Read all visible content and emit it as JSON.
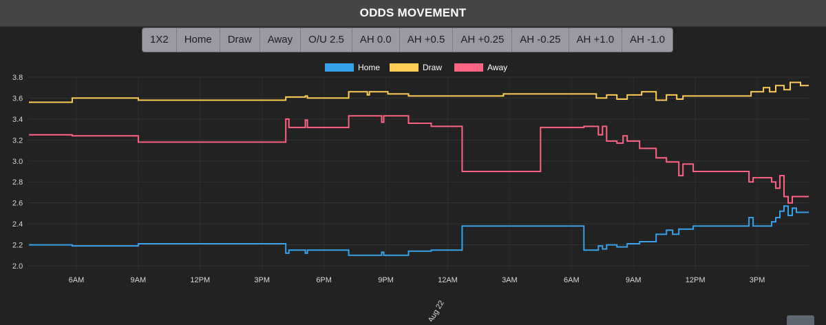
{
  "header": {
    "title": "ODDS MOVEMENT"
  },
  "tabs": [
    "1X2",
    "Home",
    "Draw",
    "Away",
    "O/U 2.5",
    "AH 0.0",
    "AH +0.5",
    "AH +0.25",
    "AH -0.25",
    "AH +1.0",
    "AH -1.0"
  ],
  "chart_data": {
    "type": "line",
    "title": "",
    "xlabel": "",
    "ylabel": "",
    "ylim": [
      2.0,
      3.8
    ],
    "yticks": [
      "2.0",
      "2.2",
      "2.4",
      "2.6",
      "2.8",
      "3.0",
      "3.2",
      "3.4",
      "3.6",
      "3.8"
    ],
    "grid": true,
    "legend_position": "top-center",
    "x_unit": "hours since the 6AM tick, Aug 21",
    "xticks": [
      {
        "x": 0,
        "label": "6AM"
      },
      {
        "x": 3,
        "label": "9AM"
      },
      {
        "x": 6,
        "label": "12PM"
      },
      {
        "x": 9,
        "label": "3PM"
      },
      {
        "x": 12,
        "label": "6PM"
      },
      {
        "x": 15,
        "label": "9PM"
      },
      {
        "x": 18,
        "label": "12AM"
      },
      {
        "x": 21,
        "label": "3AM"
      },
      {
        "x": 24,
        "label": "6AM"
      },
      {
        "x": 27,
        "label": "9AM"
      },
      {
        "x": 30,
        "label": "12PM"
      },
      {
        "x": 33,
        "label": "3PM"
      }
    ],
    "date_label": "Aug 22",
    "xlim": [
      -2.3,
      35.5
    ],
    "series": [
      {
        "name": "Home",
        "color": "#36a2eb",
        "points": [
          [
            -2.3,
            2.2
          ],
          [
            -0.2,
            2.2
          ],
          [
            -0.2,
            2.19
          ],
          [
            3.0,
            2.19
          ],
          [
            3.0,
            2.21
          ],
          [
            10.15,
            2.21
          ],
          [
            10.15,
            2.12
          ],
          [
            10.3,
            2.12
          ],
          [
            10.3,
            2.15
          ],
          [
            11.1,
            2.15
          ],
          [
            11.1,
            2.12
          ],
          [
            11.2,
            2.12
          ],
          [
            11.2,
            2.15
          ],
          [
            13.2,
            2.15
          ],
          [
            13.2,
            2.1
          ],
          [
            14.8,
            2.1
          ],
          [
            14.8,
            2.13
          ],
          [
            14.9,
            2.13
          ],
          [
            14.9,
            2.1
          ],
          [
            16.1,
            2.1
          ],
          [
            16.1,
            2.14
          ],
          [
            17.2,
            2.14
          ],
          [
            17.2,
            2.15
          ],
          [
            18.7,
            2.15
          ],
          [
            18.7,
            2.38
          ],
          [
            24.6,
            2.38
          ],
          [
            24.6,
            2.15
          ],
          [
            25.3,
            2.15
          ],
          [
            25.3,
            2.19
          ],
          [
            25.5,
            2.19
          ],
          [
            25.5,
            2.16
          ],
          [
            25.7,
            2.16
          ],
          [
            25.7,
            2.2
          ],
          [
            26.2,
            2.2
          ],
          [
            26.2,
            2.18
          ],
          [
            26.7,
            2.18
          ],
          [
            26.7,
            2.21
          ],
          [
            27.3,
            2.21
          ],
          [
            27.3,
            2.23
          ],
          [
            28.1,
            2.23
          ],
          [
            28.1,
            2.3
          ],
          [
            28.6,
            2.3
          ],
          [
            28.6,
            2.34
          ],
          [
            28.9,
            2.34
          ],
          [
            28.9,
            2.3
          ],
          [
            29.2,
            2.3
          ],
          [
            29.2,
            2.35
          ],
          [
            29.9,
            2.35
          ],
          [
            29.9,
            2.38
          ],
          [
            32.6,
            2.38
          ],
          [
            32.6,
            2.46
          ],
          [
            32.8,
            2.46
          ],
          [
            32.8,
            2.38
          ],
          [
            33.7,
            2.38
          ],
          [
            33.7,
            2.42
          ],
          [
            33.9,
            2.42
          ],
          [
            33.9,
            2.46
          ],
          [
            34.1,
            2.46
          ],
          [
            34.1,
            2.52
          ],
          [
            34.3,
            2.52
          ],
          [
            34.3,
            2.57
          ],
          [
            34.5,
            2.57
          ],
          [
            34.5,
            2.48
          ],
          [
            34.7,
            2.48
          ],
          [
            34.7,
            2.55
          ],
          [
            34.9,
            2.55
          ],
          [
            34.9,
            2.51
          ],
          [
            35.5,
            2.51
          ]
        ]
      },
      {
        "name": "Draw",
        "color": "#ffcd56",
        "points": [
          [
            -2.3,
            3.56
          ],
          [
            -0.2,
            3.56
          ],
          [
            -0.2,
            3.6
          ],
          [
            3.0,
            3.6
          ],
          [
            3.0,
            3.58
          ],
          [
            10.15,
            3.58
          ],
          [
            10.15,
            3.61
          ],
          [
            11.1,
            3.61
          ],
          [
            11.1,
            3.62
          ],
          [
            11.2,
            3.62
          ],
          [
            11.2,
            3.6
          ],
          [
            13.2,
            3.6
          ],
          [
            13.2,
            3.66
          ],
          [
            14.1,
            3.66
          ],
          [
            14.1,
            3.63
          ],
          [
            14.2,
            3.63
          ],
          [
            14.2,
            3.66
          ],
          [
            15.1,
            3.66
          ],
          [
            15.1,
            3.64
          ],
          [
            16.1,
            3.64
          ],
          [
            16.1,
            3.62
          ],
          [
            20.7,
            3.62
          ],
          [
            20.7,
            3.64
          ],
          [
            25.2,
            3.64
          ],
          [
            25.2,
            3.6
          ],
          [
            25.7,
            3.6
          ],
          [
            25.7,
            3.63
          ],
          [
            26.2,
            3.63
          ],
          [
            26.2,
            3.59
          ],
          [
            26.7,
            3.59
          ],
          [
            26.7,
            3.63
          ],
          [
            27.4,
            3.63
          ],
          [
            27.4,
            3.66
          ],
          [
            28.1,
            3.66
          ],
          [
            28.1,
            3.58
          ],
          [
            28.6,
            3.58
          ],
          [
            28.6,
            3.63
          ],
          [
            29.1,
            3.63
          ],
          [
            29.1,
            3.59
          ],
          [
            29.4,
            3.59
          ],
          [
            29.4,
            3.62
          ],
          [
            32.7,
            3.62
          ],
          [
            32.7,
            3.66
          ],
          [
            33.3,
            3.66
          ],
          [
            33.3,
            3.7
          ],
          [
            33.6,
            3.7
          ],
          [
            33.6,
            3.66
          ],
          [
            33.9,
            3.66
          ],
          [
            33.9,
            3.72
          ],
          [
            34.3,
            3.72
          ],
          [
            34.3,
            3.68
          ],
          [
            34.6,
            3.68
          ],
          [
            34.6,
            3.75
          ],
          [
            35.1,
            3.75
          ],
          [
            35.1,
            3.72
          ],
          [
            35.5,
            3.72
          ]
        ]
      },
      {
        "name": "Away",
        "color": "#ff6384",
        "points": [
          [
            -2.3,
            3.25
          ],
          [
            -0.2,
            3.25
          ],
          [
            -0.2,
            3.24
          ],
          [
            3.0,
            3.24
          ],
          [
            3.0,
            3.18
          ],
          [
            10.15,
            3.18
          ],
          [
            10.15,
            3.4
          ],
          [
            10.3,
            3.4
          ],
          [
            10.3,
            3.32
          ],
          [
            11.1,
            3.32
          ],
          [
            11.1,
            3.39
          ],
          [
            11.2,
            3.39
          ],
          [
            11.2,
            3.32
          ],
          [
            13.2,
            3.32
          ],
          [
            13.2,
            3.43
          ],
          [
            14.8,
            3.43
          ],
          [
            14.8,
            3.37
          ],
          [
            14.9,
            3.37
          ],
          [
            14.9,
            3.43
          ],
          [
            16.1,
            3.43
          ],
          [
            16.1,
            3.36
          ],
          [
            17.2,
            3.36
          ],
          [
            17.2,
            3.33
          ],
          [
            18.7,
            3.33
          ],
          [
            18.7,
            2.9
          ],
          [
            22.5,
            2.9
          ],
          [
            22.5,
            3.32
          ],
          [
            24.6,
            3.32
          ],
          [
            24.6,
            3.33
          ],
          [
            25.3,
            3.33
          ],
          [
            25.3,
            3.25
          ],
          [
            25.5,
            3.25
          ],
          [
            25.5,
            3.33
          ],
          [
            25.7,
            3.33
          ],
          [
            25.7,
            3.19
          ],
          [
            26.2,
            3.19
          ],
          [
            26.2,
            3.17
          ],
          [
            26.5,
            3.17
          ],
          [
            26.5,
            3.24
          ],
          [
            26.7,
            3.24
          ],
          [
            26.7,
            3.19
          ],
          [
            27.3,
            3.19
          ],
          [
            27.3,
            3.12
          ],
          [
            28.1,
            3.12
          ],
          [
            28.1,
            3.03
          ],
          [
            28.6,
            3.03
          ],
          [
            28.6,
            2.99
          ],
          [
            29.2,
            2.99
          ],
          [
            29.2,
            2.86
          ],
          [
            29.4,
            2.86
          ],
          [
            29.4,
            2.97
          ],
          [
            29.9,
            2.97
          ],
          [
            29.9,
            2.9
          ],
          [
            32.6,
            2.9
          ],
          [
            32.6,
            2.8
          ],
          [
            32.8,
            2.8
          ],
          [
            32.8,
            2.84
          ],
          [
            33.7,
            2.84
          ],
          [
            33.7,
            2.8
          ],
          [
            33.9,
            2.8
          ],
          [
            33.9,
            2.74
          ],
          [
            34.1,
            2.74
          ],
          [
            34.1,
            2.86
          ],
          [
            34.3,
            2.86
          ],
          [
            34.3,
            2.66
          ],
          [
            34.5,
            2.66
          ],
          [
            34.5,
            2.6
          ],
          [
            34.7,
            2.6
          ],
          [
            34.7,
            2.66
          ],
          [
            35.5,
            2.66
          ]
        ]
      }
    ]
  }
}
